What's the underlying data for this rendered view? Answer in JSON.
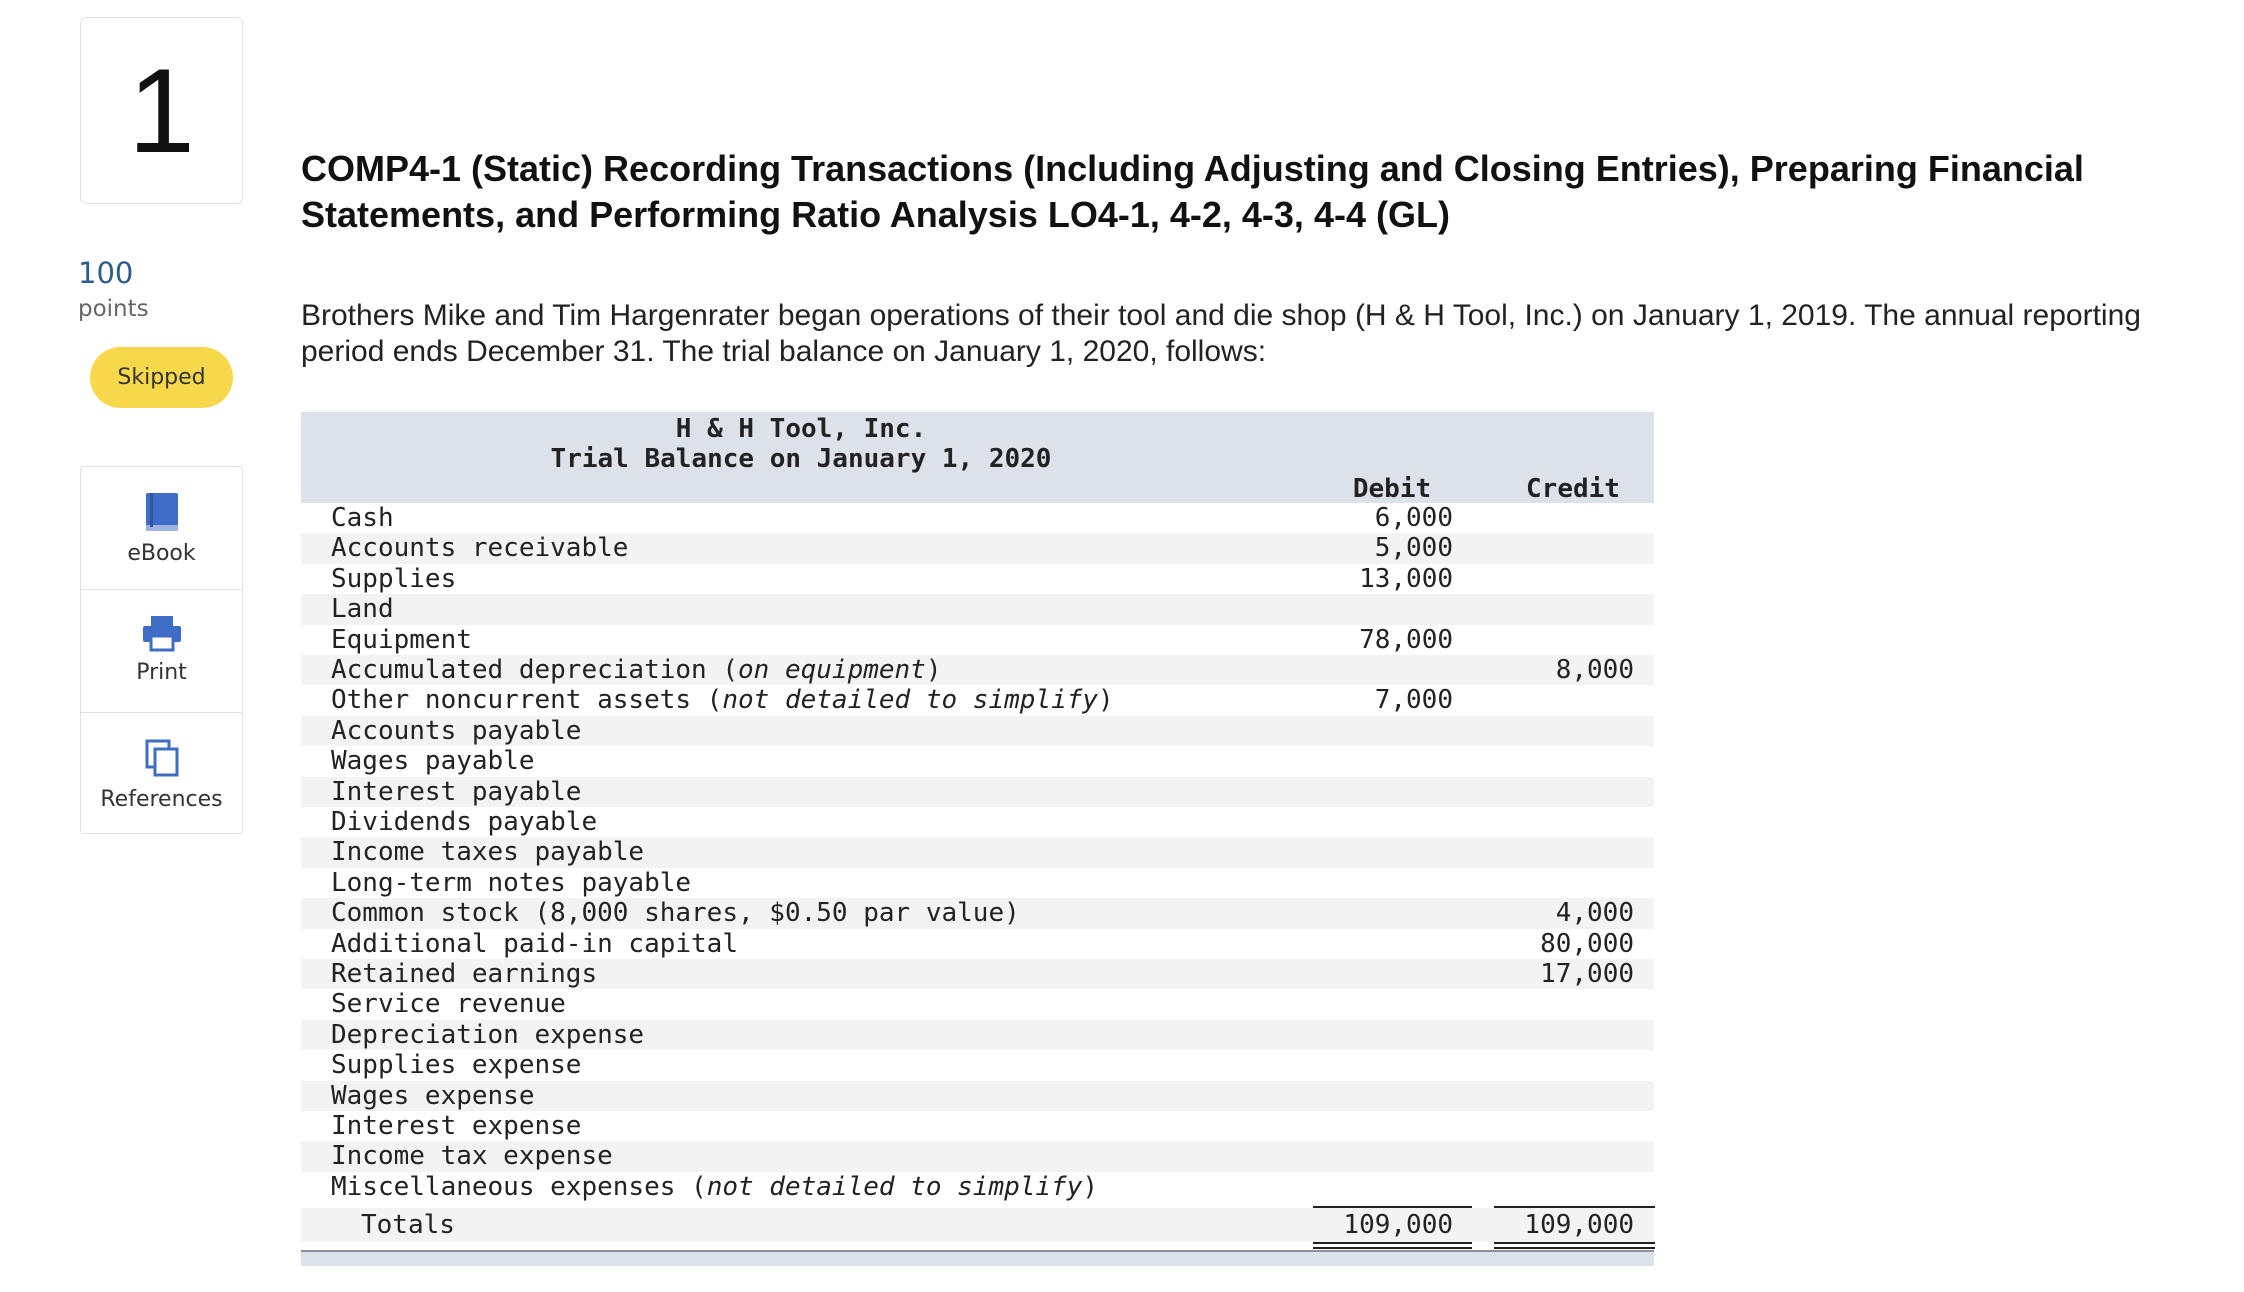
{
  "sidebar": {
    "question_number": "1",
    "points_value": "100",
    "points_label": "points",
    "status": "Skipped",
    "tools": [
      "eBook",
      "Print",
      "References"
    ]
  },
  "header": {
    "title": "COMP4-1 (Static) Recording Transactions (Including Adjusting and Closing Entries), Preparing Financial Statements, and Performing Ratio Analysis LO4-1, 4-2, 4-3, 4-4 (GL)",
    "intro": "Brothers Mike and Tim Hargenrater began operations of their tool and die shop (H & H Tool, Inc.) on January 1, 2019. The annual reporting period ends December 31. The trial balance on January 1, 2020, follows:"
  },
  "table": {
    "company": "H & H Tool, Inc.",
    "subtitle": "Trial Balance on January 1, 2020",
    "debit_header": "Debit",
    "credit_header": "Credit",
    "rows": [
      {
        "label": [
          {
            "text": "Cash"
          }
        ],
        "debit": "6,000",
        "credit": null
      },
      {
        "label": [
          {
            "text": "Accounts receivable"
          }
        ],
        "debit": "5,000",
        "credit": null
      },
      {
        "label": [
          {
            "text": "Supplies"
          }
        ],
        "debit": "13,000",
        "credit": null
      },
      {
        "label": [
          {
            "text": "Land"
          }
        ],
        "debit": null,
        "credit": null
      },
      {
        "label": [
          {
            "text": "Equipment"
          }
        ],
        "debit": "78,000",
        "credit": null
      },
      {
        "label": [
          {
            "text": "Accumulated depreciation ("
          },
          {
            "text": "on equipment",
            "italic": true
          },
          {
            "text": ")"
          }
        ],
        "debit": null,
        "credit": "8,000"
      },
      {
        "label": [
          {
            "text": "Other noncurrent assets ("
          },
          {
            "text": "not detailed to simplify",
            "italic": true
          },
          {
            "text": ")"
          }
        ],
        "debit": "7,000",
        "credit": null
      },
      {
        "label": [
          {
            "text": "Accounts payable"
          }
        ],
        "debit": null,
        "credit": null
      },
      {
        "label": [
          {
            "text": "Wages payable"
          }
        ],
        "debit": null,
        "credit": null
      },
      {
        "label": [
          {
            "text": "Interest payable"
          }
        ],
        "debit": null,
        "credit": null
      },
      {
        "label": [
          {
            "text": "Dividends payable"
          }
        ],
        "debit": null,
        "credit": null
      },
      {
        "label": [
          {
            "text": "Income taxes payable"
          }
        ],
        "debit": null,
        "credit": null
      },
      {
        "label": [
          {
            "text": "Long-term notes payable"
          }
        ],
        "debit": null,
        "credit": null
      },
      {
        "label": [
          {
            "text": "Common stock (8,000 shares, $0.50 par value)"
          }
        ],
        "debit": null,
        "credit": "4,000"
      },
      {
        "label": [
          {
            "text": "Additional paid-in capital"
          }
        ],
        "debit": null,
        "credit": "80,000"
      },
      {
        "label": [
          {
            "text": "Retained earnings"
          }
        ],
        "debit": null,
        "credit": "17,000"
      },
      {
        "label": [
          {
            "text": "Service revenue"
          }
        ],
        "debit": null,
        "credit": null
      },
      {
        "label": [
          {
            "text": "Depreciation expense"
          }
        ],
        "debit": null,
        "credit": null
      },
      {
        "label": [
          {
            "text": "Supplies expense"
          }
        ],
        "debit": null,
        "credit": null
      },
      {
        "label": [
          {
            "text": "Wages expense"
          }
        ],
        "debit": null,
        "credit": null
      },
      {
        "label": [
          {
            "text": "Interest expense"
          }
        ],
        "debit": null,
        "credit": null
      },
      {
        "label": [
          {
            "text": "Income tax expense"
          }
        ],
        "debit": null,
        "credit": null
      },
      {
        "label": [
          {
            "text": "Miscellaneous expenses ("
          },
          {
            "text": "not detailed to simplify",
            "italic": true
          },
          {
            "text": ")"
          }
        ],
        "debit": null,
        "credit": null
      }
    ],
    "totals": {
      "label": "Totals",
      "debit": "109,000",
      "credit": "109,000"
    }
  }
}
